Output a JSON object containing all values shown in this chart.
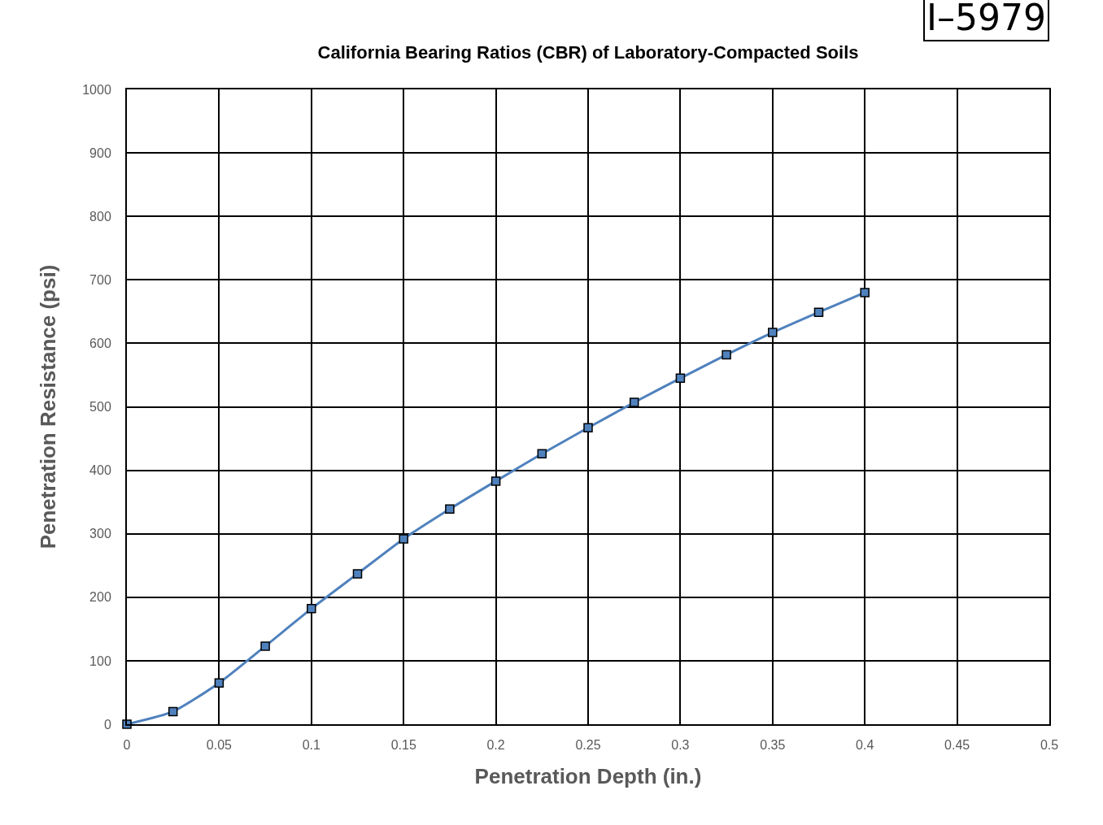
{
  "chart_data": {
    "type": "line",
    "title": "California Bearing Ratios (CBR) of Laboratory-Compacted Soils",
    "xlabel": "Penetration Depth (in.)",
    "ylabel": "Penetration Resistance (psi)",
    "x": [
      0,
      0.025,
      0.05,
      0.075,
      0.1,
      0.125,
      0.15,
      0.175,
      0.2,
      0.225,
      0.25,
      0.275,
      0.3,
      0.325,
      0.35,
      0.375,
      0.4
    ],
    "series": [
      {
        "color": "#4f81bd",
        "values": [
          0,
          20,
          65,
          123,
          182,
          237,
          292,
          339,
          383,
          426,
          467,
          507,
          545,
          582,
          617,
          649,
          680
        ]
      }
    ],
    "xlim": [
      0,
      0.5
    ],
    "xticks": [
      0,
      0.05,
      0.1,
      0.15,
      0.2,
      0.25,
      0.3,
      0.35,
      0.4,
      0.45,
      0.5
    ],
    "ylim": [
      0,
      1000
    ],
    "yticks": [
      0,
      100,
      200,
      300,
      400,
      500,
      600,
      700,
      800,
      900,
      1000
    ],
    "grid": true,
    "marker": "square",
    "line_style": "solid",
    "annotations": [
      "I–5979"
    ]
  }
}
